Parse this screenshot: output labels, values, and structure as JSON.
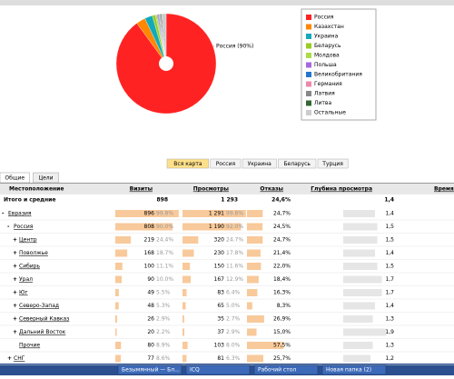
{
  "pie": {
    "type": "pie",
    "label": "Россия (90%)",
    "slices": [
      {
        "name": "Россия",
        "color": "#f22",
        "value": 90
      },
      {
        "name": "Казахстан",
        "color": "#f80",
        "value": 3
      },
      {
        "name": "Украина",
        "color": "#1ab",
        "value": 2.5
      },
      {
        "name": "Беларусь",
        "color": "#9c2",
        "value": 1
      },
      {
        "name": "Молдова",
        "color": "#ad4",
        "value": 0.5
      },
      {
        "name": "Польша",
        "color": "#a6d",
        "value": 0.3
      },
      {
        "name": "Великобритания",
        "color": "#27c",
        "value": 0.3
      },
      {
        "name": "Германия",
        "color": "#e8a",
        "value": 0.3
      },
      {
        "name": "Латвия",
        "color": "#888",
        "value": 0.3
      },
      {
        "name": "Литва",
        "color": "#363",
        "value": 0.3
      },
      {
        "name": "Остальные",
        "color": "#ccc",
        "value": 1.5
      }
    ]
  },
  "regions": [
    "Вся карта",
    "Россия",
    "Украина",
    "Беларусь",
    "Турция"
  ],
  "tabs": [
    "Общие",
    "Цели"
  ],
  "table": {
    "headers": [
      "Местоположение",
      "Визиты",
      "Просмотры",
      "Отказы",
      "Глубина просмотра",
      "Время н"
    ],
    "total": {
      "name": "Итого и средние",
      "visits": "898",
      "views": "1 293",
      "bounce": "24,6%",
      "depth": "1,4"
    },
    "rows": [
      {
        "name": "Евразия",
        "level": 0,
        "sign": "-",
        "visits": "896",
        "vshare": 99.8,
        "vshare_label": "99.8%",
        "views": "1 291",
        "pshare": 99.8,
        "pshare_label": "99.8%",
        "bounce": 24.7,
        "bounce_label": "24,7%",
        "depth": 1.4,
        "depth_label": "1,4"
      },
      {
        "name": "Россия",
        "level": 1,
        "sign": "-",
        "visits": "808",
        "vshare": 90.0,
        "vshare_label": "90.0%",
        "views": "1 190",
        "pshare": 92.0,
        "pshare_label": "92.0%",
        "bounce": 24.5,
        "bounce_label": "24,5%",
        "depth": 1.5,
        "depth_label": "1,5"
      },
      {
        "name": "Центр",
        "level": 2,
        "sign": "+",
        "visits": "219",
        "vshare": 24.4,
        "vshare_label": "24.4%",
        "views": "320",
        "pshare": 24.7,
        "pshare_label": "24.7%",
        "bounce": 24.7,
        "bounce_label": "24,7%",
        "depth": 1.5,
        "depth_label": "1,5"
      },
      {
        "name": "Поволжье",
        "level": 2,
        "sign": "+",
        "visits": "168",
        "vshare": 18.7,
        "vshare_label": "18.7%",
        "views": "230",
        "pshare": 17.8,
        "pshare_label": "17.8%",
        "bounce": 21.4,
        "bounce_label": "21,4%",
        "depth": 1.4,
        "depth_label": "1,4"
      },
      {
        "name": "Сибирь",
        "level": 2,
        "sign": "+",
        "visits": "100",
        "vshare": 11.1,
        "vshare_label": "11.1%",
        "views": "150",
        "pshare": 11.6,
        "pshare_label": "11.6%",
        "bounce": 22.0,
        "bounce_label": "22,0%",
        "depth": 1.5,
        "depth_label": "1,5"
      },
      {
        "name": "Урал",
        "level": 2,
        "sign": "+",
        "visits": "90",
        "vshare": 10.0,
        "vshare_label": "10.0%",
        "views": "167",
        "pshare": 12.9,
        "pshare_label": "12.9%",
        "bounce": 18.4,
        "bounce_label": "18,4%",
        "depth": 1.7,
        "depth_label": "1,7"
      },
      {
        "name": "Юг",
        "level": 2,
        "sign": "+",
        "visits": "49",
        "vshare": 5.5,
        "vshare_label": "5.5%",
        "views": "83",
        "pshare": 6.4,
        "pshare_label": "6.4%",
        "bounce": 16.3,
        "bounce_label": "16,3%",
        "depth": 1.7,
        "depth_label": "1,7"
      },
      {
        "name": "Северо-Запад",
        "level": 2,
        "sign": "+",
        "visits": "48",
        "vshare": 5.3,
        "vshare_label": "5.3%",
        "views": "65",
        "pshare": 5.0,
        "pshare_label": "5.0%",
        "bounce": 8.3,
        "bounce_label": "8,3%",
        "depth": 1.4,
        "depth_label": "1,4"
      },
      {
        "name": "Северный Кавказ",
        "level": 2,
        "sign": "+",
        "visits": "26",
        "vshare": 2.9,
        "vshare_label": "2.9%",
        "views": "35",
        "pshare": 2.7,
        "pshare_label": "2.7%",
        "bounce": 26.9,
        "bounce_label": "26,9%",
        "depth": 1.3,
        "depth_label": "1,3"
      },
      {
        "name": "Дальний Восток",
        "level": 2,
        "sign": "+",
        "visits": "20",
        "vshare": 2.2,
        "vshare_label": "2.2%",
        "views": "37",
        "pshare": 2.9,
        "pshare_label": "2.9%",
        "bounce": 15.0,
        "bounce_label": "15,0%",
        "depth": 1.9,
        "depth_label": "1,9"
      },
      {
        "name": "Прочие",
        "level": 2,
        "sign": "",
        "visits": "80",
        "vshare": 8.9,
        "vshare_label": "8.9%",
        "views": "103",
        "pshare": 8.0,
        "pshare_label": "8.0%",
        "bounce": 57.5,
        "bounce_label": "57,5%",
        "depth": 1.3,
        "depth_label": "1,3"
      },
      {
        "name": "СНГ",
        "level": 1,
        "sign": "+",
        "visits": "77",
        "vshare": 8.6,
        "vshare_label": "8.6%",
        "views": "81",
        "pshare": 6.3,
        "pshare_label": "6.3%",
        "bounce": 25.7,
        "bounce_label": "25,7%",
        "depth": 1.2,
        "depth_label": "1,2"
      }
    ]
  },
  "taskbar": [
    "Безымянный — Бл...",
    "ICQ",
    "Рабочий стол",
    "Новая папка (2)"
  ]
}
